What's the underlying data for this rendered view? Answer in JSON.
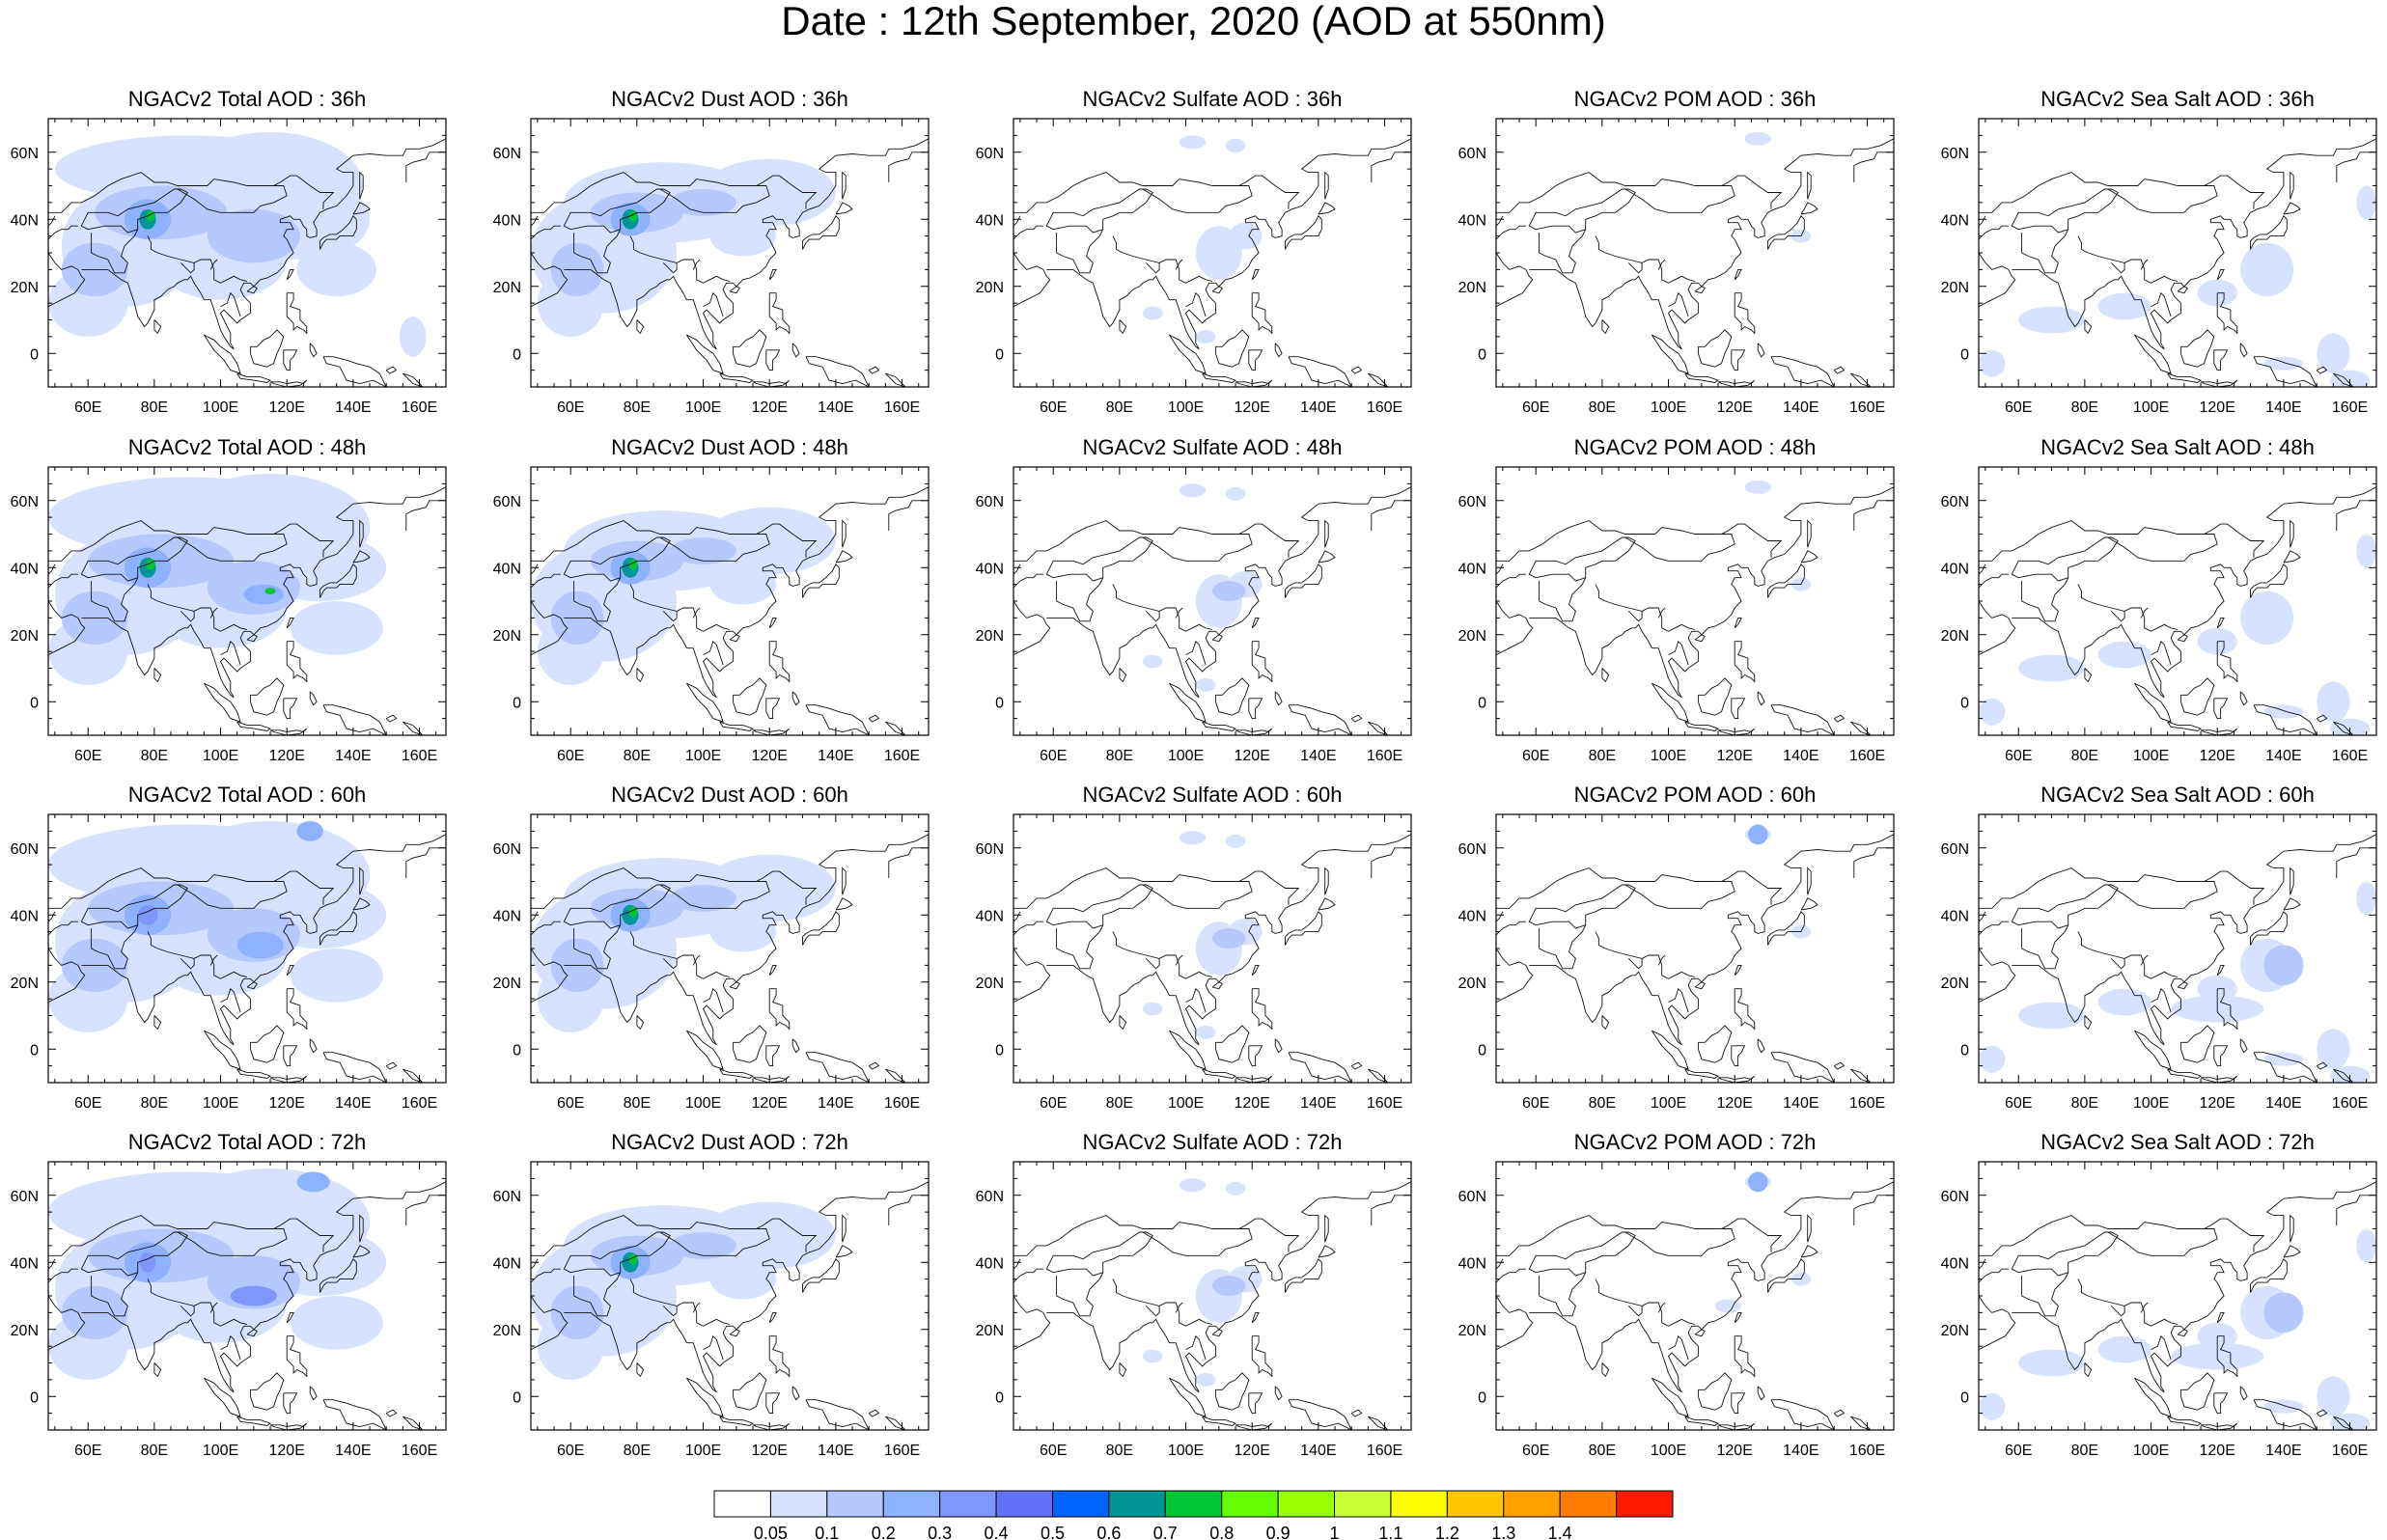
{
  "title": "Date : 12th September, 2020 (AOD at 550nm)",
  "panel_rows": [
    [
      "NGACv2 Total AOD : 36h",
      "NGACv2 Dust AOD : 36h",
      "NGACv2 Sulfate AOD : 36h",
      "NGACv2 POM AOD : 36h",
      "NGACv2 Sea Salt AOD : 36h"
    ],
    [
      "NGACv2 Total AOD : 48h",
      "NGACv2 Dust AOD : 48h",
      "NGACv2 Sulfate AOD : 48h",
      "NGACv2 POM AOD : 48h",
      "NGACv2 Sea Salt AOD : 48h"
    ],
    [
      "NGACv2 Total AOD : 60h",
      "NGACv2 Dust AOD : 60h",
      "NGACv2 Sulfate AOD : 60h",
      "NGACv2 POM AOD : 60h",
      "NGACv2 Sea Salt AOD : 60h"
    ],
    [
      "NGACv2 Total AOD : 72h",
      "NGACv2 Dust AOD : 72h",
      "NGACv2 Sulfate AOD : 72h",
      "NGACv2 POM AOD : 72h",
      "NGACv2 Sea Salt  AOD : 72h"
    ]
  ],
  "map": {
    "lon_range": [
      48,
      168
    ],
    "lat_range": [
      -10,
      70
    ],
    "lon_ticks": [
      "60E",
      "80E",
      "100E",
      "120E",
      "140E",
      "160E"
    ],
    "lon_tick_values": [
      60,
      80,
      100,
      120,
      140,
      160
    ],
    "lat_ticks": [
      "60N",
      "40N",
      "20N",
      "0"
    ],
    "lat_tick_values": [
      60,
      40,
      20,
      0
    ]
  },
  "colorbar": {
    "labels": [
      "0.05",
      "0.1",
      "0.2",
      "0.3",
      "0.4",
      "0.5",
      "0.6",
      "0.7",
      "0.8",
      "0.9",
      "1",
      "1.1",
      "1.2",
      "1.3",
      "1.4"
    ],
    "colors": [
      "#ffffff",
      "#d6e2ff",
      "#b5c9ff",
      "#8eb2ff",
      "#7f96ff",
      "#6370f8",
      "#0063ff",
      "#009696",
      "#00c633",
      "#63ff00",
      "#96ff00",
      "#c6ff33",
      "#ffff00",
      "#ffc600",
      "#ffa000",
      "#ff7c00",
      "#ff1900"
    ]
  }
}
